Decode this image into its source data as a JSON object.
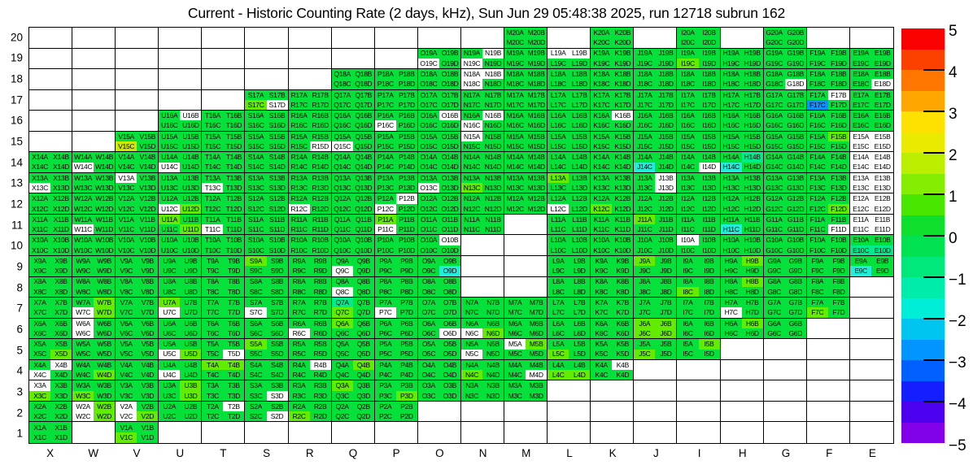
{
  "title": "Current - Historic Counting Rate (2 days, kHz), Sun Jun 29 05:48:38 2025, run 12718 subrun 162",
  "chart_data": {
    "type": "heatmap",
    "title": "Current - Historic Counting Rate (2 days, kHz), Sun Jun 29 05:48:38 2025, run 12718 subrun 162",
    "xlabel": "",
    "ylabel": "",
    "columns": [
      "X",
      "W",
      "V",
      "U",
      "T",
      "S",
      "R",
      "Q",
      "P",
      "O",
      "N",
      "M",
      "L",
      "K",
      "J",
      "I",
      "H",
      "G",
      "F",
      "E"
    ],
    "rows": [
      "20",
      "19",
      "18",
      "17",
      "16",
      "15",
      "14",
      "13",
      "12",
      "11",
      "10",
      "9",
      "8",
      "7",
      "6",
      "5",
      "4",
      "3",
      "2",
      "1"
    ],
    "quad_order": [
      "A",
      "B",
      "C",
      "D"
    ],
    "label_pattern": "{column}{row}{quad}",
    "color_legend": {
      "g": "#06e03a",
      "b": "#62ec00",
      "y": "#cdea00",
      "t": "#00eb8e",
      "c": "#22edd9",
      "u": "#1090fd",
      "w": "#ffffff"
    },
    "legend_values_kHz": {
      "g": 0.3,
      "b": 1.6,
      "y": 2.3,
      "t": -0.7,
      "c": -1.6,
      "u": -2.6,
      "w": "no data / masked"
    },
    "cells": {
      "20": {
        "M": "gggg",
        "K": "gggg",
        "I": "gggg",
        "G": "gggg"
      },
      "19": {
        "O": "ggwg",
        "N": "gwwg",
        "M": "gggg",
        "L": "wwgg",
        "K": "gggg",
        "J": "gggg",
        "I": "ggbg",
        "H": "gggg",
        "G": "gggg",
        "F": "gggg",
        "E": "gggg"
      },
      "18": {
        "Q": "gggg",
        "P": "gggg",
        "O": "gggg",
        "N": "wwwg",
        "M": "gggg",
        "L": "gggg",
        "K": "gggg",
        "J": "gggg",
        "I": "gggg",
        "H": "gggg",
        "G": "gggw",
        "F": "gggg",
        "E": "gggw"
      },
      "17": {
        "S": "ggbw",
        "R": "gggg",
        "Q": "gggg",
        "P": "gggg",
        "O": "gggg",
        "N": "gggg",
        "M": "gggg",
        "L": "gggg",
        "K": "gggg",
        "J": "gggg",
        "I": "gggg",
        "H": "gggg",
        "G": "gggg",
        "F": "gwug",
        "E": "gggg"
      },
      "16": {
        "U": "gwgg",
        "T": "gggg",
        "S": "gggg",
        "R": "gggg",
        "Q": "gggg",
        "P": "ggwg",
        "O": "gwgg",
        "N": "gwwg",
        "M": "gggg",
        "L": "gggg",
        "K": "gwgg",
        "J": "gggg",
        "I": "gggg",
        "H": "gggg",
        "G": "gggg",
        "F": "gggg",
        "E": "gggg"
      },
      "15": {
        "V": "ggyg",
        "U": "gggg",
        "T": "gggg",
        "S": "gggg",
        "R": "gggw",
        "Q": "ggwg",
        "P": "gggg",
        "O": "gggg",
        "N": "wggg",
        "M": "gggg",
        "L": "gggg",
        "K": "gggg",
        "J": "gggg",
        "I": "gggg",
        "H": "gggg",
        "G": "gggg",
        "F": "gbgg",
        "E": "wwww"
      },
      "14": {
        "X": "gggg",
        "W": "ggwg",
        "V": "gggg",
        "U": "ggwg",
        "T": "gggg",
        "S": "gggg",
        "R": "gggg",
        "Q": "gggg",
        "P": "gggg",
        "O": "gggg",
        "N": "gggg",
        "M": "gggg",
        "L": "gggg",
        "K": "gggg",
        "J": "ggcg",
        "I": "gggw",
        "H": "gtcg",
        "G": "gggg",
        "F": "gggg",
        "E": "wwww"
      },
      "13": {
        "X": "ggwg",
        "W": "gggg",
        "V": "wggg",
        "U": "gggg",
        "T": "ggwg",
        "S": "gggg",
        "R": "gggg",
        "Q": "gggg",
        "P": "gggg",
        "O": "ggwg",
        "N": "ggbg",
        "M": "gggg",
        "L": "bggg",
        "K": "gggg",
        "J": "gwgw",
        "I": "gggg",
        "H": "gggg",
        "G": "gggg",
        "F": "gggg",
        "E": "wwww"
      },
      "12": {
        "X": "gggg",
        "W": "gggg",
        "V": "gggg",
        "U": "ggwb",
        "T": "gggg",
        "S": "gggg",
        "R": "ggwg",
        "Q": "gggg",
        "P": "gwwg",
        "O": "gggg",
        "N": "gggg",
        "M": "gggg",
        "L": "ggwg",
        "K": "ggbg",
        "J": "gggg",
        "I": "gggg",
        "H": "gggg",
        "G": "gggg",
        "F": "gggb",
        "E": "wwww"
      },
      "11": {
        "X": "gggg",
        "W": "ggwg",
        "V": "gggg",
        "U": "bggb",
        "T": "ggwg",
        "S": "gggg",
        "R": "gggg",
        "Q": "gggg",
        "P": "bgwg",
        "O": "gggg",
        "N": "gggg",
        "L": "gggg",
        "K": "gggg",
        "J": "bggg",
        "I": "gggg",
        "H": "ggcg",
        "G": "gggg",
        "F": "gggw",
        "E": "wwww"
      },
      "10": {
        "X": "gggg",
        "W": "gggg",
        "V": "gggg",
        "U": "gggg",
        "T": "gggg",
        "S": "gggg",
        "R": "gggg",
        "Q": "gggg",
        "P": "gggg",
        "O": "gwgg",
        "L": "gggg",
        "K": "gggg",
        "J": "gggg",
        "I": "wggg",
        "H": "gggg",
        "G": "gggg",
        "F": "gggg",
        "E": "ggtt"
      },
      "9": {
        "X": "gggg",
        "W": "gggg",
        "V": "gggg",
        "U": "gggg",
        "T": "gggg",
        "S": "bggg",
        "R": "gggg",
        "Q": "ggwg",
        "P": "gggg",
        "O": "gggc",
        "L": "gggg",
        "K": "gggg",
        "J": "bggg",
        "I": "gggg",
        "H": "gbgg",
        "G": "gggg",
        "F": "gggg",
        "E": "ggcg"
      },
      "8": {
        "X": "gggg",
        "W": "gggg",
        "V": "gggg",
        "U": "gggg",
        "T": "gggg",
        "S": "gggg",
        "R": "gggg",
        "Q": "ggwg",
        "P": "gggg",
        "O": "gggg",
        "L": "gggg",
        "K": "gggg",
        "J": "gggg",
        "I": "ggbg",
        "H": "gbgg",
        "G": "gggg",
        "F": "gggg"
      },
      "7": {
        "X": "gggg",
        "W": "gbwb",
        "V": "gggg",
        "U": "bgwg",
        "T": "gggg",
        "S": "ggwg",
        "R": "gggg",
        "Q": "tgbg",
        "P": "ggwg",
        "O": "gggg",
        "N": "gggg",
        "M": "gggg",
        "L": "gggg",
        "K": "gggg",
        "J": "gggg",
        "I": "gggg",
        "H": "ggwg",
        "G": "gggg",
        "F": "ggbg"
      },
      "6": {
        "X": "gggg",
        "W": "wgwg",
        "V": "gggg",
        "U": "gggg",
        "T": "gggg",
        "S": "gggg",
        "R": "ggwg",
        "Q": "bggg",
        "P": "gggg",
        "O": "gggw",
        "N": "ggwb",
        "M": "gggg",
        "L": "gggg",
        "K": "gggg",
        "J": "bbbb",
        "I": "gggg",
        "H": "gbgg",
        "G": "gggg"
      },
      "5": {
        "X": "gggb",
        "W": "gggg",
        "V": "gggg",
        "U": "ggwb",
        "T": "gggw",
        "S": "bggg",
        "R": "gggg",
        "Q": "gggg",
        "P": "gggg",
        "O": "gggg",
        "N": "ggwg",
        "M": "wbgg",
        "L": "ggbg",
        "K": "gggg",
        "J": "ggbg",
        "I": "gbgg"
      },
      "4": {
        "X": "gwwg",
        "W": "gggb",
        "V": "gggg",
        "U": "ggwg",
        "T": "bbgg",
        "S": "gggg",
        "R": "gwgg",
        "Q": "gbgg",
        "P": "gggg",
        "O": "gggg",
        "N": "ggbg",
        "M": "gggw",
        "L": "ggbb",
        "K": "gwgg"
      },
      "3": {
        "X": "wgbg",
        "W": "ggbg",
        "V": "gggg",
        "U": "gbgb",
        "T": "gggg",
        "S": "gggw",
        "R": "gggg",
        "Q": "bggg",
        "P": "gggb",
        "O": "gggg",
        "N": "gggg",
        "M": "gggg"
      },
      "2": {
        "X": "gggg",
        "W": "wbwb",
        "V": "wgwb",
        "U": "gggg",
        "T": "gwgg",
        "S": "gggw",
        "R": "ggbg",
        "Q": "gggg",
        "P": "gggg"
      },
      "1": {
        "X": "gggg",
        "V": "ggbg"
      }
    },
    "colorbar": {
      "min": -5,
      "max": 5,
      "tick_labels": [
        "5",
        "4",
        "3",
        "2",
        "1",
        "0",
        "−1",
        "−2",
        "−3",
        "−4",
        "−5"
      ],
      "band_colors": [
        "#fb0000",
        "#fc4000",
        "#fe7500",
        "#ffa600",
        "#ffe100",
        "#e9ea00",
        "#bcee00",
        "#85ee00",
        "#49e700",
        "#0edf2f",
        "#00e250",
        "#00e87c",
        "#00ecaa",
        "#00eed7",
        "#00c5f1",
        "#0095ff",
        "#005fff",
        "#141fff",
        "#4c00f0",
        "#8100e8"
      ]
    },
    "grid": true,
    "legend_position": "right"
  }
}
